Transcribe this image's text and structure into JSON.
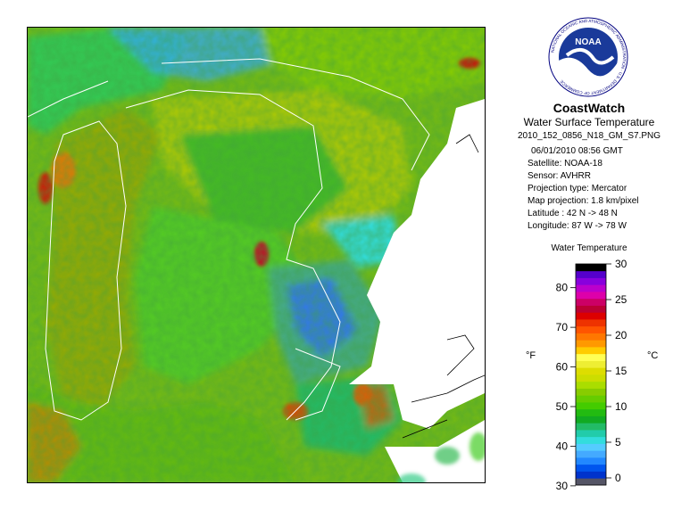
{
  "header": {
    "logo_text": "NOAA",
    "logo_ring_text": "NATIONAL OCEANIC AND ATMOSPHERIC ADMINISTRATION · U.S. DEPARTMENT OF COMMERCE",
    "title": "CoastWatch",
    "subtitle": "Water Surface Temperature",
    "filename": "2010_152_0856_N18_GM_S7.PNG"
  },
  "meta": {
    "date_time": "06/01/2010    08:56 GMT",
    "satellite": "Satellite: NOAA-18",
    "sensor": "Sensor: AVHRR",
    "projection_type": "Projection type:  Mercator",
    "map_projection": "Map projection: 1.8 km/pixel",
    "latitude": "Latitude : 42 N -> 48 N",
    "longitude": "Longitude: 87 W -> 78 W"
  },
  "legend": {
    "title": "Water Temperature",
    "unit_f": "°F",
    "unit_c": "°C",
    "f_ticks": [
      "30",
      "40",
      "50",
      "60",
      "70",
      "80"
    ],
    "c_ticks": [
      "0",
      "5",
      "10",
      "15",
      "20",
      "25",
      "30"
    ],
    "c_min": -1,
    "c_max": 30,
    "colors": [
      "#555566",
      "#0033cc",
      "#0055ee",
      "#2288ff",
      "#44aaff",
      "#55ccff",
      "#33dddd",
      "#22ccaa",
      "#22bb66",
      "#11aa22",
      "#22bb11",
      "#44cc00",
      "#66cc00",
      "#88cc00",
      "#aadd00",
      "#ccdd00",
      "#dddd00",
      "#eeee33",
      "#ffff55",
      "#ffcc00",
      "#ff9900",
      "#ff7700",
      "#ff5500",
      "#ee3300",
      "#dd0000",
      "#bb0033",
      "#cc0066",
      "#dd00aa",
      "#bb00cc",
      "#8800dd",
      "#5500cc",
      "#000000"
    ]
  },
  "map": {
    "background_color": "#77bb11",
    "land_color": "#ffffff",
    "coast_color": "#ffffff"
  }
}
